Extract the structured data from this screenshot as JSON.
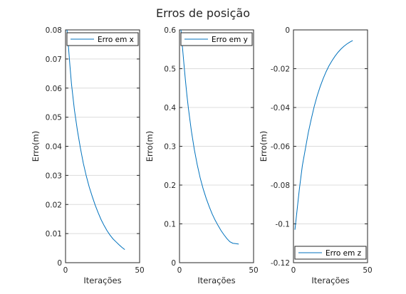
{
  "figure": {
    "title": "Erros de posição",
    "line_color": "#0072bd"
  },
  "chart_data": [
    {
      "type": "line",
      "xlabel": "Iterações",
      "ylabel": "Erro(m)",
      "xlim": [
        0,
        50
      ],
      "ylim": [
        0,
        0.08
      ],
      "xticks": [
        0,
        50
      ],
      "yticks": [
        0,
        0.01,
        0.02,
        0.03,
        0.04,
        0.05,
        0.06,
        0.07,
        0.08
      ],
      "grid": true,
      "legend_position": "top",
      "series": [
        {
          "name": "Erro em x",
          "x": [
            1,
            2,
            3,
            4,
            5,
            6,
            8,
            10,
            12,
            14,
            16,
            18,
            20,
            22,
            24,
            26,
            28,
            30,
            32,
            34,
            36,
            38,
            40
          ],
          "y": [
            0.08,
            0.074,
            0.0675,
            0.0615,
            0.057,
            0.0525,
            0.0455,
            0.0395,
            0.0342,
            0.0298,
            0.026,
            0.0228,
            0.0198,
            0.0172,
            0.0148,
            0.0128,
            0.011,
            0.0095,
            0.0082,
            0.0072,
            0.0062,
            0.0053,
            0.0045
          ]
        }
      ]
    },
    {
      "type": "line",
      "xlabel": "Iterações",
      "ylabel": "Erro(m)",
      "xlim": [
        0,
        50
      ],
      "ylim": [
        0,
        0.6
      ],
      "xticks": [
        0,
        50
      ],
      "yticks": [
        0,
        0.1,
        0.2,
        0.3,
        0.4,
        0.5,
        0.6
      ],
      "grid": true,
      "legend_position": "top",
      "series": [
        {
          "name": "Erro em y",
          "x": [
            1,
            2,
            3,
            4,
            5,
            6,
            8,
            10,
            12,
            14,
            16,
            18,
            20,
            22,
            24,
            26,
            28,
            30,
            32,
            34,
            36,
            38,
            40
          ],
          "y": [
            0.6,
            0.555,
            0.512,
            0.47,
            0.432,
            0.398,
            0.34,
            0.292,
            0.252,
            0.218,
            0.19,
            0.166,
            0.145,
            0.126,
            0.11,
            0.096,
            0.083,
            0.072,
            0.062,
            0.054,
            0.05,
            0.049,
            0.048
          ]
        }
      ]
    },
    {
      "type": "line",
      "xlabel": "Iterações",
      "ylabel": "Erro(m)",
      "xlim": [
        0,
        50
      ],
      "ylim": [
        -0.12,
        0
      ],
      "xticks": [
        0,
        50
      ],
      "yticks": [
        -0.12,
        -0.1,
        -0.08,
        -0.06,
        -0.04,
        -0.02,
        0
      ],
      "grid": true,
      "legend_position": "bottom",
      "series": [
        {
          "name": "Erro em z",
          "x": [
            1,
            2,
            3,
            4,
            5,
            6,
            8,
            10,
            12,
            14,
            16,
            18,
            20,
            22,
            24,
            26,
            28,
            30,
            32,
            34,
            36,
            38,
            40
          ],
          "y": [
            -0.103,
            -0.096,
            -0.089,
            -0.082,
            -0.076,
            -0.07,
            -0.0615,
            -0.053,
            -0.046,
            -0.0395,
            -0.034,
            -0.0293,
            -0.0252,
            -0.0216,
            -0.0185,
            -0.0159,
            -0.0136,
            -0.0116,
            -0.0099,
            -0.0085,
            -0.0073,
            -0.0063,
            -0.0055
          ]
        }
      ]
    }
  ]
}
